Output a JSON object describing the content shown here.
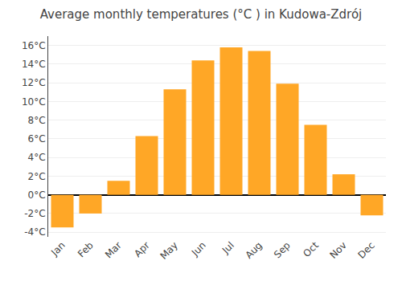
{
  "chart_data": {
    "type": "bar",
    "title": "Average monthly temperatures (°C ) in Kudowa-Zdrój",
    "categories": [
      "Jan",
      "Feb",
      "Mar",
      "Apr",
      "May",
      "Jun",
      "Jul",
      "Aug",
      "Sep",
      "Oct",
      "Nov",
      "Dec"
    ],
    "values": [
      -3.5,
      -2.0,
      1.5,
      6.3,
      11.3,
      14.4,
      15.8,
      15.4,
      11.9,
      7.5,
      2.2,
      -2.2
    ],
    "color": "#FFA726",
    "ylim": [
      -4.5,
      17
    ],
    "yticks": [
      {
        "value": -4,
        "label": "-4°C"
      },
      {
        "value": -2,
        "label": "-2°C"
      },
      {
        "value": 0,
        "label": "0°C"
      },
      {
        "value": 2,
        "label": "2°C"
      },
      {
        "value": 4,
        "label": "4°C"
      },
      {
        "value": 6,
        "label": "6°C"
      },
      {
        "value": 8,
        "label": "8°C"
      },
      {
        "value": 10,
        "label": "10°C"
      },
      {
        "value": 12,
        "label": "12°C"
      },
      {
        "value": 14,
        "label": "14°C"
      },
      {
        "value": 16,
        "label": "16°C"
      }
    ],
    "grid": true
  }
}
